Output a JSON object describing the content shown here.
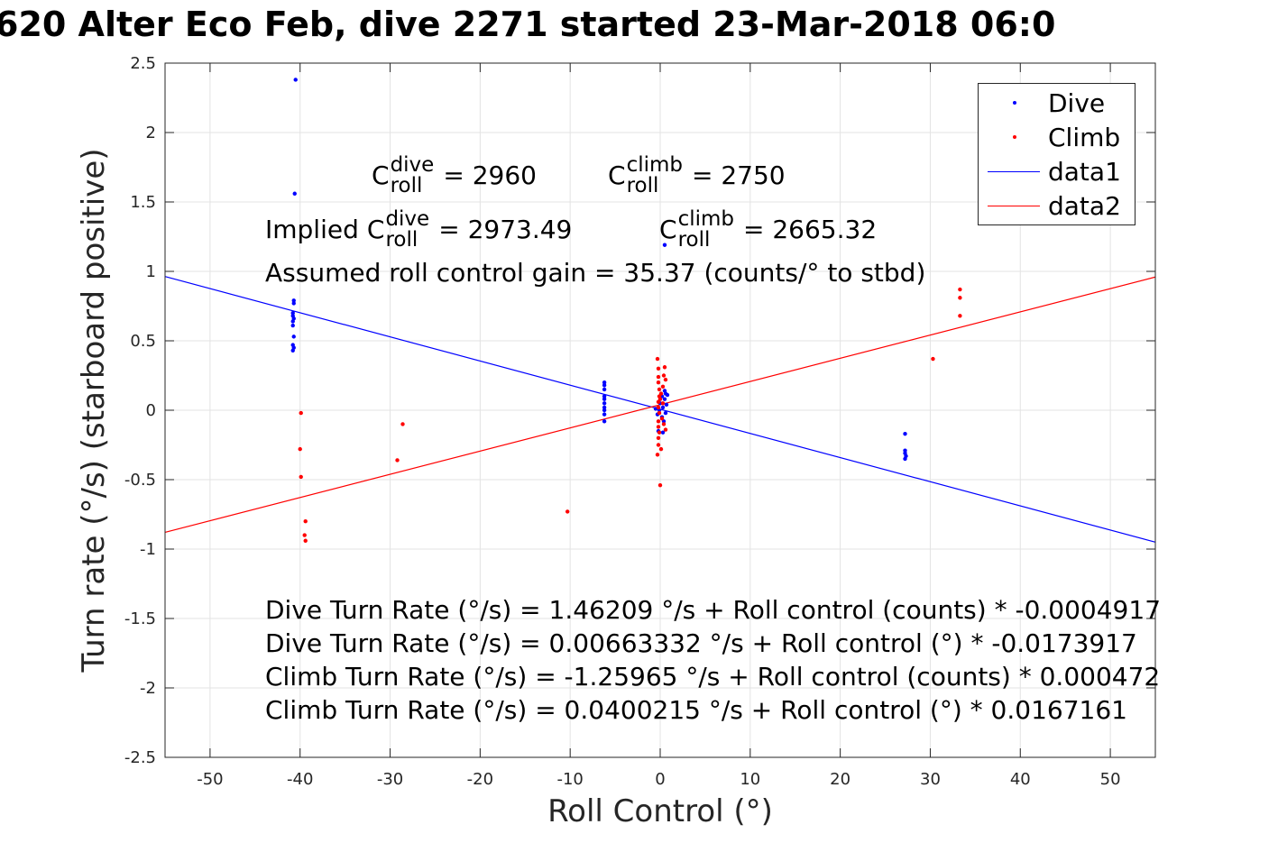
{
  "title": "620 Alter Eco Feb, dive 2271 started 23-Mar-2018 06:0",
  "chart_data": {
    "type": "scatter",
    "xlabel": "Roll Control (°)",
    "ylabel": "Turn rate (°/s) (starboard positive)",
    "xlim": [
      -55,
      55
    ],
    "ylim": [
      -2.5,
      2.5
    ],
    "xticks": [
      -50,
      -40,
      -30,
      -20,
      -10,
      0,
      10,
      20,
      30,
      40,
      50
    ],
    "xtick_labels": [
      "-50",
      "-40",
      "-30",
      "-20",
      "-10",
      "0",
      "10",
      "20",
      "30",
      "40",
      "50"
    ],
    "yticks": [
      -2.5,
      -2,
      -1.5,
      -1,
      -0.5,
      0,
      0.5,
      1,
      1.5,
      2,
      2.5
    ],
    "ytick_labels": [
      "-2.5",
      "-2",
      "-1.5",
      "-1",
      "-0.5",
      "0",
      "0.5",
      "1",
      "1.5",
      "2",
      "2.5"
    ],
    "grid": true,
    "legend_position": "top-right",
    "series": [
      {
        "name": "Dive",
        "kind": "points",
        "color": "#0000ff",
        "points": [
          [
            -40.5,
            2.38
          ],
          [
            -40.6,
            1.56
          ],
          [
            -40.7,
            0.79
          ],
          [
            -40.7,
            0.77
          ],
          [
            -40.8,
            0.7
          ],
          [
            -40.8,
            0.68
          ],
          [
            -40.7,
            0.66
          ],
          [
            -40.8,
            0.64
          ],
          [
            -40.8,
            0.61
          ],
          [
            -40.7,
            0.53
          ],
          [
            -40.8,
            0.47
          ],
          [
            -40.7,
            0.45
          ],
          [
            -40.8,
            0.43
          ],
          [
            -6.2,
            0.2
          ],
          [
            -6.2,
            0.18
          ],
          [
            -6.2,
            0.15
          ],
          [
            -6.2,
            0.1
          ],
          [
            -6.2,
            0.08
          ],
          [
            -6.2,
            0.05
          ],
          [
            -6.2,
            0.02
          ],
          [
            -6.2,
            0.0
          ],
          [
            -6.2,
            -0.03
          ],
          [
            -6.2,
            -0.08
          ],
          [
            -0.5,
            0.01
          ],
          [
            -0.3,
            -0.03
          ],
          [
            -0.2,
            -0.15
          ],
          [
            0.0,
            0.05
          ],
          [
            0.2,
            0.1
          ],
          [
            0.3,
            0.02
          ],
          [
            0.4,
            -0.08
          ],
          [
            0.5,
            0.14
          ],
          [
            0.5,
            0.08
          ],
          [
            0.6,
            0.12
          ],
          [
            0.6,
            -0.02
          ],
          [
            0.7,
            0.04
          ],
          [
            0.8,
            0.11
          ],
          [
            0.3,
            -0.16
          ],
          [
            0.5,
            1.19
          ],
          [
            -0.1,
            0.0
          ],
          [
            0.2,
            -0.05
          ],
          [
            27.2,
            -0.17
          ],
          [
            27.2,
            -0.29
          ],
          [
            27.2,
            -0.31
          ],
          [
            27.3,
            -0.33
          ],
          [
            27.2,
            -0.35
          ]
        ]
      },
      {
        "name": "Climb",
        "kind": "points",
        "color": "#ff0000",
        "points": [
          [
            -39.9,
            -0.02
          ],
          [
            -40.0,
            -0.28
          ],
          [
            -39.9,
            -0.48
          ],
          [
            -39.4,
            -0.8
          ],
          [
            -39.5,
            -0.9
          ],
          [
            -39.4,
            -0.94
          ],
          [
            -28.6,
            -0.1
          ],
          [
            -29.2,
            -0.36
          ],
          [
            -10.3,
            -0.73
          ],
          [
            -0.3,
            0.37
          ],
          [
            -0.2,
            0.3
          ],
          [
            -0.2,
            0.24
          ],
          [
            -0.2,
            0.2
          ],
          [
            -0.1,
            0.15
          ],
          [
            -0.1,
            0.1
          ],
          [
            -0.2,
            0.06
          ],
          [
            -0.2,
            0.02
          ],
          [
            -0.1,
            -0.02
          ],
          [
            -0.2,
            -0.08
          ],
          [
            -0.2,
            -0.12
          ],
          [
            -0.1,
            -0.16
          ],
          [
            -0.2,
            -0.2
          ],
          [
            -0.2,
            -0.25
          ],
          [
            -0.3,
            -0.32
          ],
          [
            0.1,
            -0.28
          ],
          [
            0.0,
            -0.54
          ],
          [
            0.3,
            0.17
          ],
          [
            0.4,
            0.25
          ],
          [
            0.3,
            0.05
          ],
          [
            0.4,
            -0.1
          ],
          [
            0.5,
            0.31
          ],
          [
            0.6,
            0.22
          ],
          [
            0.6,
            -0.14
          ],
          [
            0.1,
            0.12
          ],
          [
            0.2,
            -0.06
          ],
          [
            0.0,
            0.08
          ],
          [
            30.3,
            0.37
          ],
          [
            33.3,
            0.87
          ],
          [
            33.3,
            0.81
          ],
          [
            33.3,
            0.68
          ]
        ]
      },
      {
        "name": "data1",
        "kind": "line",
        "color": "#0000ff",
        "intercept": 0.00663332,
        "slope": -0.0173917
      },
      {
        "name": "data2",
        "kind": "line",
        "color": "#ff0000",
        "intercept": 0.0400215,
        "slope": 0.0167161
      }
    ]
  },
  "annotations": {
    "c_roll_letter": "C",
    "roll": "roll",
    "dive": "dive",
    "climb": "climb",
    "c_dive_value": "= 2960",
    "c_climb_value": "= 2750",
    "implied_prefix": "Implied",
    "implied_dive_value": "= 2973.49",
    "implied_climb_value": "= 2665.32",
    "gain": "Assumed roll control gain = 35.37 (counts/° to stbd)",
    "eq1": "Dive Turn Rate (°/s) = 1.46209 °/s + Roll control (counts) * -0.0004917",
    "eq2": "Dive Turn Rate (°/s) = 0.00663332 °/s + Roll control (°) * -0.0173917",
    "eq3": "Climb Turn Rate (°/s) = -1.25965 °/s + Roll control (counts) * 0.000472",
    "eq4": "Climb Turn Rate (°/s) = 0.0400215 °/s + Roll control (°) * 0.0167161"
  }
}
